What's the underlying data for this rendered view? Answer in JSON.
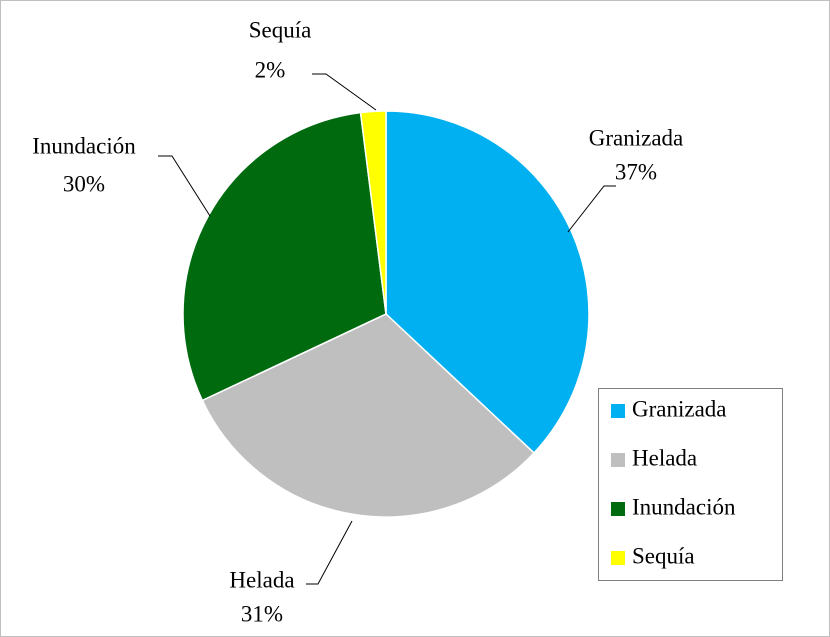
{
  "chart_data": {
    "type": "pie",
    "categories": [
      "Granizada",
      "Helada",
      "Inundación",
      "Sequía"
    ],
    "values": [
      37,
      31,
      30,
      2
    ],
    "value_labels": [
      "37%",
      "31%",
      "30%",
      "2%"
    ],
    "colors": [
      "#00b0f0",
      "#bfbfbf",
      "#006a0e",
      "#ffff00"
    ],
    "legend": "right"
  }
}
